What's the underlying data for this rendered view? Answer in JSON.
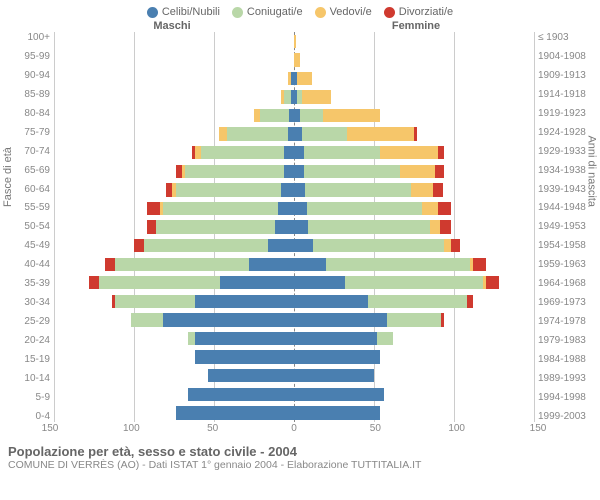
{
  "legend": [
    {
      "label": "Celibi/Nubili",
      "color": "#4a7fb0"
    },
    {
      "label": "Coniugati/e",
      "color": "#b9d7a8"
    },
    {
      "label": "Vedovi/e",
      "color": "#f6c66a"
    },
    {
      "label": "Divorziati/e",
      "color": "#cf3a2f"
    }
  ],
  "header_male": "Maschi",
  "header_female": "Femmine",
  "axis_left_title": "Fasce di età",
  "axis_right_title": "Anni di nascita",
  "x_ticks": [
    150,
    100,
    50,
    0,
    50,
    100,
    150
  ],
  "x_max": 150,
  "grid_color": "#cccccc",
  "center_dash_color": "#888888",
  "background_color": "#ffffff",
  "label_color": "#888888",
  "title": "Popolazione per età, sesso e stato civile - 2004",
  "subtitle": "COMUNE DI VERRÈS (AO) - Dati ISTAT 1° gennaio 2004 - Elaborazione TUTTITALIA.IT",
  "rows": [
    {
      "age": "100+",
      "birth": "≤ 1903",
      "m": [
        0,
        0,
        0,
        0
      ],
      "f": [
        0,
        0,
        1,
        0
      ]
    },
    {
      "age": "95-99",
      "birth": "1904-1908",
      "m": [
        0,
        0,
        0,
        0
      ],
      "f": [
        0,
        0,
        4,
        0
      ]
    },
    {
      "age": "90-94",
      "birth": "1909-1913",
      "m": [
        2,
        0,
        2,
        0
      ],
      "f": [
        2,
        0,
        9,
        0
      ]
    },
    {
      "age": "85-89",
      "birth": "1914-1918",
      "m": [
        2,
        4,
        2,
        0
      ],
      "f": [
        2,
        3,
        18,
        0
      ]
    },
    {
      "age": "80-84",
      "birth": "1919-1923",
      "m": [
        3,
        18,
        4,
        0
      ],
      "f": [
        4,
        14,
        36,
        0
      ]
    },
    {
      "age": "75-79",
      "birth": "1924-1928",
      "m": [
        4,
        38,
        5,
        0
      ],
      "f": [
        5,
        28,
        42,
        2
      ]
    },
    {
      "age": "70-74",
      "birth": "1929-1933",
      "m": [
        6,
        52,
        4,
        2
      ],
      "f": [
        6,
        48,
        36,
        4
      ]
    },
    {
      "age": "65-69",
      "birth": "1934-1938",
      "m": [
        6,
        62,
        2,
        4
      ],
      "f": [
        6,
        60,
        22,
        6
      ]
    },
    {
      "age": "60-64",
      "birth": "1939-1943",
      "m": [
        8,
        66,
        2,
        4
      ],
      "f": [
        7,
        66,
        14,
        6
      ]
    },
    {
      "age": "55-59",
      "birth": "1944-1948",
      "m": [
        10,
        72,
        2,
        8
      ],
      "f": [
        8,
        72,
        10,
        8
      ]
    },
    {
      "age": "50-54",
      "birth": "1949-1953",
      "m": [
        12,
        74,
        0,
        6
      ],
      "f": [
        9,
        76,
        6,
        7
      ]
    },
    {
      "age": "45-49",
      "birth": "1954-1958",
      "m": [
        16,
        78,
        0,
        6
      ],
      "f": [
        12,
        82,
        4,
        6
      ]
    },
    {
      "age": "40-44",
      "birth": "1959-1963",
      "m": [
        28,
        84,
        0,
        6
      ],
      "f": [
        20,
        90,
        2,
        8
      ]
    },
    {
      "age": "35-39",
      "birth": "1964-1968",
      "m": [
        46,
        76,
        0,
        6
      ],
      "f": [
        32,
        86,
        2,
        8
      ]
    },
    {
      "age": "30-34",
      "birth": "1969-1973",
      "m": [
        62,
        50,
        0,
        2
      ],
      "f": [
        46,
        62,
        0,
        4
      ]
    },
    {
      "age": "25-29",
      "birth": "1974-1978",
      "m": [
        82,
        20,
        0,
        0
      ],
      "f": [
        58,
        34,
        0,
        2
      ]
    },
    {
      "age": "20-24",
      "birth": "1979-1983",
      "m": [
        62,
        4,
        0,
        0
      ],
      "f": [
        52,
        10,
        0,
        0
      ]
    },
    {
      "age": "15-19",
      "birth": "1984-1988",
      "m": [
        62,
        0,
        0,
        0
      ],
      "f": [
        54,
        0,
        0,
        0
      ]
    },
    {
      "age": "10-14",
      "birth": "1989-1993",
      "m": [
        54,
        0,
        0,
        0
      ],
      "f": [
        50,
        0,
        0,
        0
      ]
    },
    {
      "age": "5-9",
      "birth": "1994-1998",
      "m": [
        66,
        0,
        0,
        0
      ],
      "f": [
        56,
        0,
        0,
        0
      ]
    },
    {
      "age": "0-4",
      "birth": "1999-2003",
      "m": [
        74,
        0,
        0,
        0
      ],
      "f": [
        54,
        0,
        0,
        0
      ]
    }
  ]
}
